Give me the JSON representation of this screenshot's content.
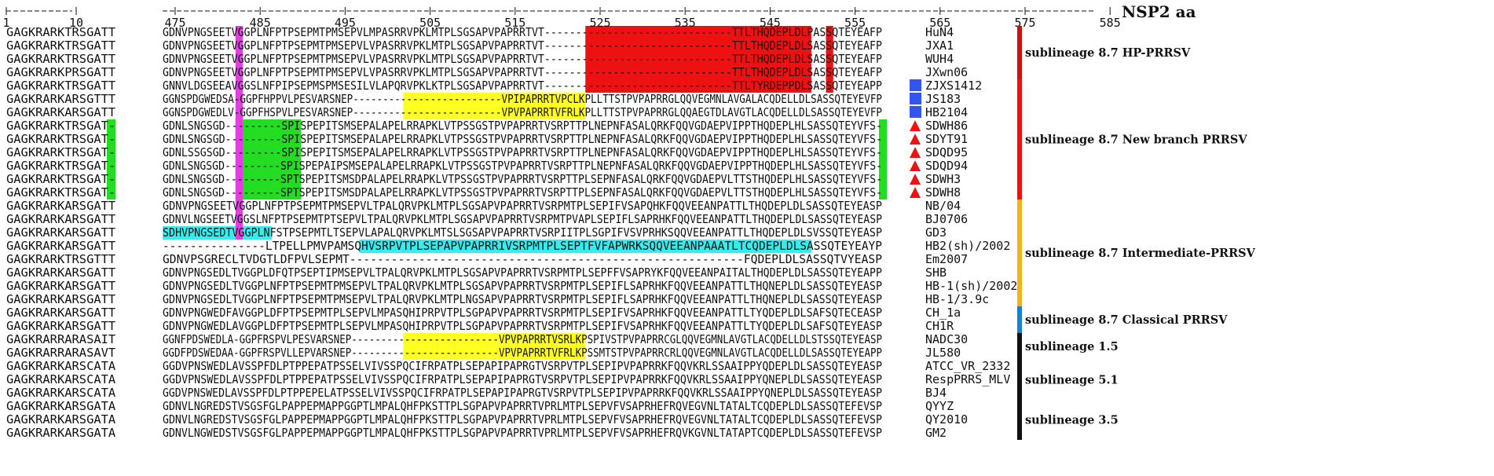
{
  "title": "NSP2 aa",
  "ruler": {
    "left_ticks": [
      "1",
      "10"
    ],
    "right_ticks": [
      "475",
      "485",
      "495",
      "505",
      "515",
      "525",
      "535",
      "545",
      "555",
      "565",
      "575",
      "585"
    ]
  },
  "colors": {
    "magenta": "#e040e0",
    "green": "#22dd22",
    "red": "#ee1111",
    "yellow": "#ffff22",
    "cyan": "#33eeee",
    "blue_square": "#3355ee",
    "red_triangle": "#ee1111",
    "bar_hp": "#cc1111",
    "bar_new": "#ee1111",
    "bar_intermediate": "#f2b21a",
    "bar_classical": "#1a7fd1",
    "bar_other": "#111111"
  },
  "sequences": [
    {
      "name": "HuN4",
      "marker": "",
      "left": "GAGKRARKTRSGATT",
      "right": "GDNVPNGSEETVGGPLNFPTPSEPMTPMSEPVLMPASRRVPKLMTPLSGSAPVPAPRRTVT------------------------------TTLTHQDEPLDLPASSQTEYEAFP"
    },
    {
      "name": "JXA1",
      "marker": "",
      "left": "GAGKRARKTRSGATT",
      "right": "GDNVPNGSEETVGGPLNFPTPSEPMTPMSEPVLVPASRRVPKLMTPLSGSAPVPAPRRTVT------------------------------TTLTHQDEPLDLSASSQTEYEAFP"
    },
    {
      "name": "WUH4",
      "marker": "",
      "left": "GAGKRARKTRSGATT",
      "right": "GDNVPNGSEETVGGPLNFPTPSEPMTPMSEPVLVPASRRVPKLMTPLSGSAPVPAPRRTVT------------------------------TTLTHQDEPLDLSASSQTEYEAFP"
    },
    {
      "name": "JXwn06",
      "marker": "",
      "left": "GAGKRARKPRSGATT",
      "right": "GDNVPNGSEETVGGPLNFPTPSEPMTPMSEPVLVPASRRVPKLMTPLSGSAPVPAPRRTVT------------------------------TTLTHQDEPLDLSASSQTEYEAFP"
    },
    {
      "name": "ZJXS1412",
      "marker": "square",
      "left": "GAGKRARKTRSGATT",
      "right": "GNNVLDGSEEAVGGSLNFPIPSEPMSPMSESILVLAPQRVPKLKTPLSGSAPVPAPRRTVT------------------------------TTLTYRDEPPDLSASSQTEYEAPP"
    },
    {
      "name": "JS183",
      "marker": "square",
      "left": "GAGKRARKARSGTTT",
      "right": "GGNSPDGWEDSA-GGPFHPPVLPESVARSNEP-------------------------VPIPAPRRTVPCLKPLLTTSTPVPAPRRGLQQVEGMNLAVGALACQDELLDLSASSQTEYEVFP"
    },
    {
      "name": "HB2104",
      "marker": "square",
      "left": "GAGKRARKARSGATT",
      "right": "GGNSPDGWEDLV-GGPFHSPVLPESVARSNEP-------------------------VPVPAPRRTVFRLKPLLTTSTPVPAPRRGLQQAEGTDLAVGTLACQDELLDLSASSQTEYEVFP"
    },
    {
      "name": "SDWH86",
      "marker": "triangle",
      "left": "GAGKRARKTRSGAT-",
      "right": "GDNLSNGSGD---------SPISPEPITSMSEPALAPELRRAPKLVTPSSGSTPVPAPRRTVSRPTTPLNEPNFASALQRKFQQVGDAEPVIPPTHQDEPLHLSASSQTEYVFS-"
    },
    {
      "name": "SDYT91",
      "marker": "triangle",
      "left": "GAGKRARKTRSGAT-",
      "right": "GDNLSNGSGD---------SPISPEPITSMSEPALAPELRRAPKLVTPSSGSTPVPAPRRTVSRPTTPLNEPNFASALQRKFQQVGDAEPVIPPTHQDEPLHLSASSQTEYVFS-"
    },
    {
      "name": "SDQD95",
      "marker": "triangle",
      "left": "GAGKRARKTRSGAT-",
      "right": "GDNLSSGSGD---------SPISPEPITSMSEPALAPELRRAPKLVTPSSGSTPVPAPRRTVSRPTTPLNEPNFASALQRKFQQVGDAEPVIPPTHQDEPLHLSASSQTEYVFS-"
    },
    {
      "name": "SDQD94",
      "marker": "triangle",
      "left": "GAGKRARKTRSGAT-",
      "right": "GDNLSNGSGD---------SPISPEPAIPSMSEPALAPELRRAPKLVTPSSGSTPVPAPRRTVSRPTTPLNEPNFASALQRKFQQVGDAEPVIPPTHQDEPLHLSASSQTEYVFS-"
    },
    {
      "name": "SDWH3",
      "marker": "triangle",
      "left": "GAGKRARKTRSGAT-",
      "right": "GDNLSNGSGD---------SPTSPEPITSMSDPALAPELRRAPKLVTPSSGSTPVPAPRRTVSRPTTPLSEPNFASALQRKFQQVGDAEPVLTTSTHQDEPLHLSASSQTEYVFS-"
    },
    {
      "name": "SDWH8",
      "marker": "triangle",
      "left": "GAGKRARKTRSGAT-",
      "right": "GDNLSNGSGD---------SPTSPEPITSMSDPALAPELRRAPKLVTPSSGSTPVPAPRRTVSRPTTPLSEPNFASALQRKFQQVGDAEPVLTTSTHQDEPLHLSASSQTEYVFS-"
    },
    {
      "name": "NB/04",
      "marker": "",
      "left": "GAGKRARKARSGATT",
      "right": "GDNVPNGSEETVGGPLNFPTPSEPMTPMSEPVLTPALQRVPKLMTPLSGSAPVPAPRRTVSRPMTPLSEPIFVSAPQHKFQQVEEANPATTLTHQDEPLDLSASSQTEYEASP"
    },
    {
      "name": "BJ0706",
      "marker": "",
      "left": "GAGKRARKARSGATT",
      "right": "GDNVLNGSEETVGGSLNFPTPSEPMTPTSEPVLTPALQRVPKLMTPLSGSAPVPAPRRTVSRPMTPVAPLSEPIFLSAPRHKFQQVEEANPATTLTHQDEPLDLSASSQTEYEASP"
    },
    {
      "name": "GD3",
      "marker": "",
      "left": "GAGKRARKARSGATT",
      "right": "SDHVPNGSEDTVGGPLNFSTPSEPMTLTSEPVLAPALQRVPKLMTSLSGSAPVPAPRRTVSRPIITPLSGPIFVSVPRHKSQQVEEANPATTLTHQDEPLDLSVSSQTEYEASP"
    },
    {
      "name": "HB2(sh)/2002",
      "marker": "",
      "left": "GAGKRARKARSGATT",
      "right": "---------------LTPELLPMVPAMSQHVSRPVTPLSEPAPVPAPRRIVSRPMTPLSEPTFVFAPWRKSQQVEEANPAAATLTCQDEPLDLSASSQTEYEAYP"
    },
    {
      "name": "Em2007",
      "marker": "",
      "left": "GAGKRARKTRSGTTT",
      "right": "GDNVPSGRECLTVDGTLDFPVLSEPMT---------------------------------------------------------FQDEPLDLSASSQTVYEASP"
    },
    {
      "name": "SHB",
      "marker": "",
      "left": "GAGKRARKARSGATT",
      "right": "GDNVPNGSEDLTVGGPLDFQTPSEPTIPMSEPVLTPALQRVPKLMTPLSGSAPVPAPRRTVSRPMTPLSEPFFVSAPRYKFQQVEEANPAITALTHQDEPLDLSASSQTEYEAPP"
    },
    {
      "name": "HB-1(sh)/2002",
      "marker": "",
      "left": "GAGKRARKARSGATT",
      "right": "GDNVPNGSEDLTVGGPLNFPTPSEPMTPMSEPVLTPALQRVPKLMTPLSGSAPVPAPRRTVSRPMTPLSEPIFLSAPRHKFQQVEEANPATTLTHQNEPLDLSASSQTEYEASP"
    },
    {
      "name": "HB-1/3.9c",
      "marker": "",
      "left": "GAGKRARKARSGATT",
      "right": "GDNVPNGSEDLTVGGPLNFPTPSEPMTPMSEPVLTPALQRVPKLMTPLNGSAPVPAPRRTVSRPMTPLSEPIFLSAPRHKFQQVEEANPATTLTHQNEPLDLSASSQTEYEASP"
    },
    {
      "name": "CH_1a",
      "marker": "",
      "left": "GAGKRARKARSGATT",
      "right": "GDNVPNGWEDFAVGGPLDFPTPSEPMTPLSEPVLMPASQHIPRPVTPLSGPAPVPAPRRTVSRPMTPLSEPIFVSAPRHKFQQVEEANPATTLTYQDEPLDLSAFSQTECEASP"
    },
    {
      "name": "CH1R",
      "marker": "",
      "left": "GAGKRARKARSGATT",
      "right": "GDNVPNGWEDLAVGGPLDFPTPSEPMTPLSEPVLMPASQHIPRPVTPLSGPAPVPAPRRTVSRPMTPLSEPIFVSAPRHKFQQVEEANPATTLTYQDEPLDLSAFSQTEYEASP"
    },
    {
      "name": "NADC30",
      "marker": "",
      "left": "GAGKRARRARASAIT",
      "right": "GGNFPDSWEDLA-GGPFRSPVLPESVARSNEP-------------------------VPVPAPRRTVSRLKPSPIVSTPVPAPRRCGLQQVEGMNLAVGTLACQDELLDLSTSSQTEYEASP"
    },
    {
      "name": "JL580",
      "marker": "",
      "left": "GAGKRARRARASAVT",
      "right": "GGDFPDSWEDAA-GGPFRSPVLLEPVARSNEP-------------------------VPVPAPRRTVFRLKPSSMTSTPVPAPRRCRLQQVEGMNLAVGTLACQDELLDLSASSQTEYEAPP"
    },
    {
      "name": "ATCC_VR_2332",
      "marker": "",
      "left": "GAGKRARKARSCATA",
      "right": "GGDVPNSWEDLAVSSPFDLPTPPEPATPSSELVIVSSPQCIFRPATPLSEPAPIPAPRGTVSRPVTPLSEPIPVPAPRRKFQQVKRLSSAAIPPYQDEPLDLSASSQTEYEASP"
    },
    {
      "name": "RespPRRS_MLV",
      "marker": "",
      "left": "GAGKRARKARSCATA",
      "right": "GGDVPNSWEDLAVSSPFDLPTPPEPATPSSELVIVSSPQCIFRPATPLSEPAPIPAPRGTVSRPVTPLSEPIPVPAPRRKFQQVKRLSSAAIPPYQNEPLDLSASSQTEYEASP"
    },
    {
      "name": "BJ4",
      "marker": "",
      "left": "GAGKRARKARSCATA",
      "right": "GGDVPNSWEDLAVSSPFDLPTPPEPELATPSSELVIVSSPQCIFRPATPLSEPAPIPAPRGTVSRPVTPLSEPIPVPAPRRKFQQVKRLSSAAIPPYQNEPLDLSASSQTEYEASP"
    },
    {
      "name": "QYYZ",
      "marker": "",
      "left": "GAGKRARKARSGATA",
      "right": "GDNVLNGREDSTVSGSFGLPAPPEPMAPPGGPTLMPALQHFPKSTTPLSGPAPVPAPRRTVPRLMTPLSEPVFVSAPRHEFRQVEGVNLTATALTCQDEPLDLSASSQTEFEVSP"
    },
    {
      "name": "QY2010",
      "marker": "",
      "left": "GAGKRARKARSGATA",
      "right": "GDNVLNGREDSTVSGSFGLPAPPEPMAPPGGPTLMPALQHFPKSTTPLSGPAPVPAPRRTVPRLMTPLSEPVFVSAPRHEFRQVEGVNLTATALTCQDEPLDLSASSQTEFEVSP"
    },
    {
      "name": "GM2",
      "marker": "",
      "left": "GAGKRARKARSGATA",
      "right": "GDNVLNGWEDSTVSGSFGLPAPPEPMAPPGGPTLMPALQHFPKSTTPLSGPAPVPAPRRTVPRLMTPLSEPVFVSAPRHEFRQVKGVNLTATAPTCQDEPLDLSASSQTEFEVSP"
    }
  ],
  "lineages": [
    {
      "label": "sublineage 8.7 HP-PRRSV",
      "color_key": "bar_hp"
    },
    {
      "label": "sublineage 8.7 New branch PRRSV",
      "color_key": "bar_new"
    },
    {
      "label": "sublineage 8.7 Intermediate-PRRSV",
      "color_key": "bar_intermediate"
    },
    {
      "label": "sublineage 8.7 Classical PRRSV",
      "color_key": "bar_classical"
    },
    {
      "label": "sublineage 1.5",
      "color_key": "bar_other"
    },
    {
      "label": "sublineage 5.1",
      "color_key": "bar_other"
    },
    {
      "label": "sublineage 3.5",
      "color_key": "bar_other"
    }
  ]
}
